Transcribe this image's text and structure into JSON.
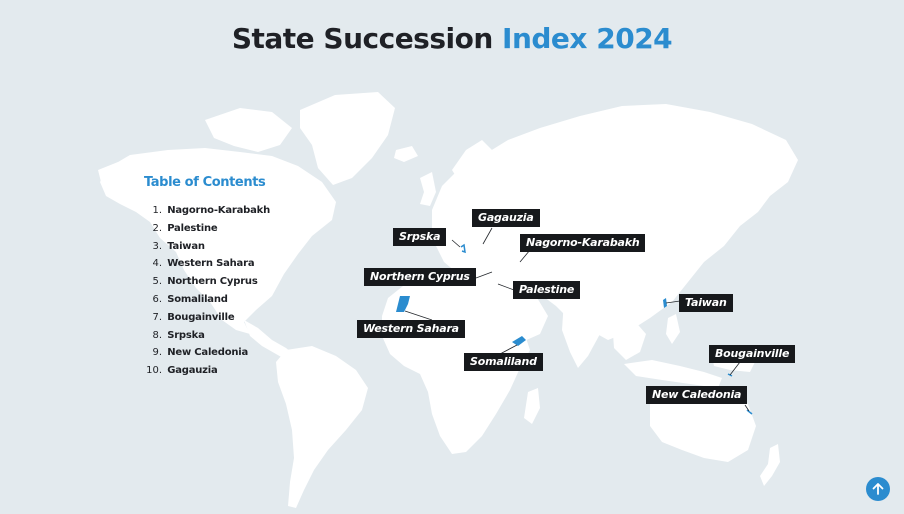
{
  "title": {
    "main": "State Succession",
    "accent": "Index 2024"
  },
  "toc": {
    "heading": "Table of Contents",
    "items": [
      {
        "number": "1.",
        "name": "Nagorno-Karabakh"
      },
      {
        "number": "2.",
        "name": "Palestine"
      },
      {
        "number": "3.",
        "name": "Taiwan"
      },
      {
        "number": "4.",
        "name": "Western Sahara"
      },
      {
        "number": "5.",
        "name": "Northern Cyprus"
      },
      {
        "number": "6.",
        "name": "Somaliland"
      },
      {
        "number": "7.",
        "name": "Bougainville"
      },
      {
        "number": "8.",
        "name": "Srpska"
      },
      {
        "number": "9.",
        "name": "New Caledonia"
      },
      {
        "number": "10.",
        "name": "Gagauzia"
      }
    ]
  },
  "map_labels": {
    "gagauzia": "Gagauzia",
    "srpska": "Srpska",
    "nagorno_karabakh": "Nagorno-Karabakh",
    "northern_cyprus": "Northern Cyprus",
    "palestine": "Palestine",
    "western_sahara": "Western Sahara",
    "somaliland": "Somaliland",
    "taiwan": "Taiwan",
    "bougainville": "Bougainville",
    "new_caledonia": "New Caledonia"
  },
  "colors": {
    "background": "#e3eaee",
    "land": "#ffffff",
    "accent": "#2b8ccf",
    "label_bg": "#17191c"
  },
  "icons": {
    "scroll_top": "arrow-up-icon"
  }
}
